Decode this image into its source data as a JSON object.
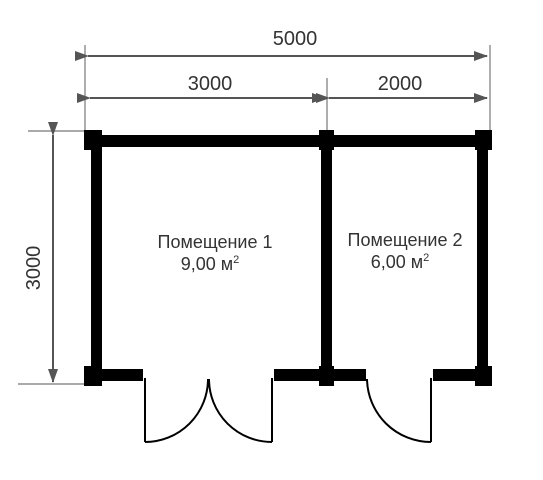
{
  "colors": {
    "wall": "#000000",
    "dimension_line": "#555555",
    "text": "#333333",
    "background": "#ffffff"
  },
  "dimensions": {
    "total_width": "5000",
    "left_width": "3000",
    "right_width": "2000",
    "height": "3000"
  },
  "rooms": [
    {
      "name": "Помещение 1",
      "area_value": "9,00 м",
      "area_unit_sup": "2"
    },
    {
      "name": "Помещение 2",
      "area_value": "6,00 м",
      "area_unit_sup": "2"
    }
  ]
}
